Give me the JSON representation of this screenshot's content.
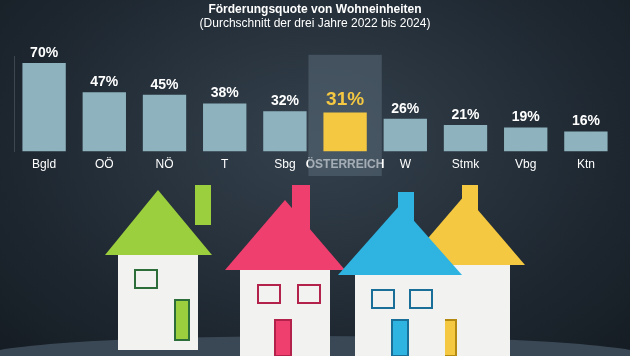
{
  "chart_data": {
    "type": "bar",
    "title": "Förderungsquote von Wohneinheiten",
    "subtitle": "(Durchschnitt der drei Jahre 2022 bis 2024)",
    "categories": [
      "Bgld",
      "OÖ",
      "NÖ",
      "T",
      "Sbg",
      "ÖSTERREICH",
      "W",
      "Stmk",
      "Vbg",
      "Ktn"
    ],
    "values": [
      70,
      47,
      45,
      38,
      32,
      31,
      26,
      21,
      19,
      16
    ],
    "value_labels": [
      "70%",
      "47%",
      "45%",
      "38%",
      "32%",
      "31%",
      "26%",
      "21%",
      "19%",
      "16%"
    ],
    "colors": [
      "#8eb3be",
      "#8eb3be",
      "#8eb3be",
      "#8eb3be",
      "#8eb3be",
      "#f5c842",
      "#8eb3be",
      "#8eb3be",
      "#8eb3be",
      "#8eb3be"
    ],
    "ylim": [
      0,
      75
    ],
    "grid": false,
    "data_labels": true,
    "tick_labels": "x"
  }
}
